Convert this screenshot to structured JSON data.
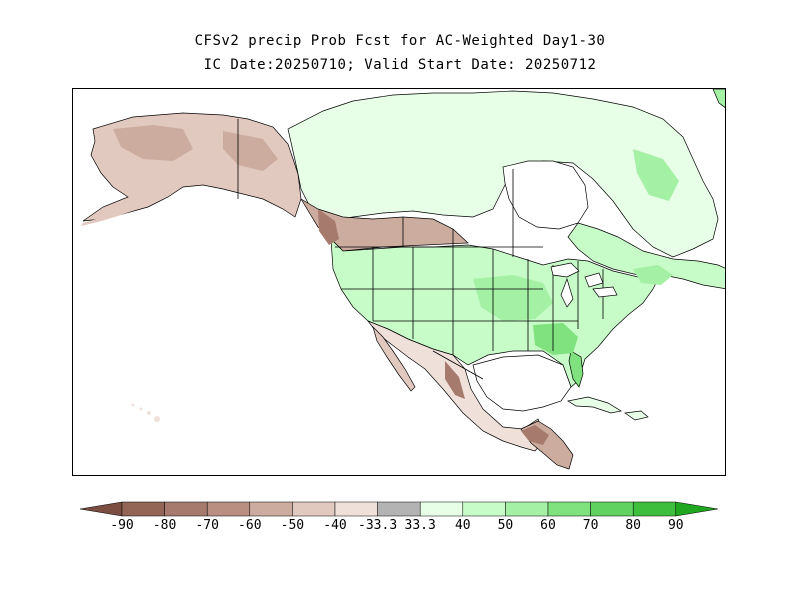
{
  "title": {
    "line1": "CFSv2 precip Prob Fcst for AC-Weighted Day1-30",
    "line2": "IC Date:20250710; Valid Start Date: 20250712"
  },
  "colorbar": {
    "labels": [
      "-90",
      "-80",
      "-70",
      "-60",
      "-50",
      "-40",
      "-33.3",
      "33.3",
      "40",
      "50",
      "60",
      "70",
      "80",
      "90"
    ],
    "colors": [
      "#7c4e42",
      "#936557",
      "#a67b6d",
      "#b98f82",
      "#ccac9f",
      "#e2c9c0",
      "#efe0da",
      "#b3b3b3",
      "#e6ffe6",
      "#c7fbc7",
      "#a4f0a4",
      "#7fe27f",
      "#5fd25f",
      "#3dbf3d",
      "#1fa81f"
    ]
  },
  "map_colors": {
    "ocean": "#ffffff",
    "dry_light": "#efe0da",
    "dry_mid": "#e2c9c0",
    "dry_strong": "#ccac9f",
    "dry_very": "#a67b6d",
    "wet_light": "#e6ffe6",
    "wet_mid": "#c7fbc7",
    "wet_strong": "#a4f0a4",
    "wet_very": "#7fe27f",
    "boundary": "#000000"
  }
}
